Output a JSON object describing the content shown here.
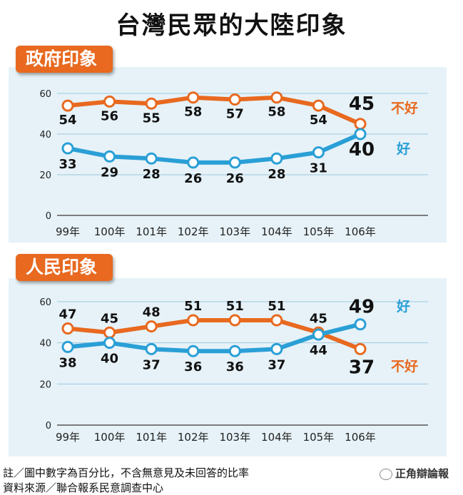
{
  "title": "台灣民眾的大陸印象",
  "chart_data": [
    {
      "type": "line",
      "title": "政府印象",
      "categories": [
        "99年",
        "100年",
        "101年",
        "102年",
        "103年",
        "104年",
        "105年",
        "106年"
      ],
      "ylim": [
        0,
        60
      ],
      "yticks": [
        "0",
        "20",
        "40",
        "60"
      ],
      "grid": true,
      "series": [
        {
          "name": "不好",
          "color": "#e8691f",
          "values": [
            54,
            56,
            55,
            58,
            57,
            58,
            54,
            45
          ]
        },
        {
          "name": "好",
          "color": "#2a9fd6",
          "values": [
            33,
            29,
            28,
            26,
            26,
            28,
            31,
            40
          ]
        }
      ]
    },
    {
      "type": "line",
      "title": "人民印象",
      "categories": [
        "99年",
        "100年",
        "101年",
        "102年",
        "103年",
        "104年",
        "105年",
        "106年"
      ],
      "ylim": [
        0,
        60
      ],
      "yticks": [
        "0",
        "20",
        "40",
        "60"
      ],
      "grid": true,
      "series": [
        {
          "name": "不好",
          "color": "#e8691f",
          "values": [
            47,
            45,
            48,
            51,
            51,
            51,
            45,
            37
          ]
        },
        {
          "name": "好",
          "color": "#2a9fd6",
          "values": [
            38,
            40,
            37,
            36,
            36,
            37,
            44,
            49
          ]
        }
      ]
    }
  ],
  "notes": {
    "line1": "註／圖中數字為百分比，不含無意見及未回答的比率",
    "line2": "資料來源／聯合報系民意調查中心"
  },
  "watermark": "正角辯論報"
}
